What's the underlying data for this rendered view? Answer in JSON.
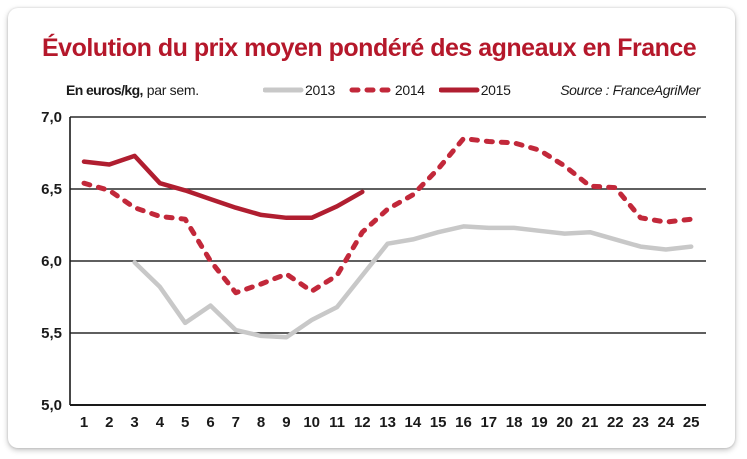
{
  "title": "Évolution du prix moyen pondéré des agneaux en France",
  "unit_label_bold": "En euros/kg,",
  "unit_label_rest": "par sem.",
  "source": "Source : FranceAgriMer",
  "colors": {
    "title": "#b5182b",
    "s2013": "#c8c8c8",
    "s2014": "#c2283a",
    "s2015": "#b01e30",
    "grid": "#2a2a2a"
  },
  "chart_data": {
    "type": "line",
    "title": "Évolution du prix moyen pondéré des agneaux en France",
    "xlabel": "",
    "ylabel": "En euros/kg, par sem.",
    "x": [
      1,
      2,
      3,
      4,
      5,
      6,
      7,
      8,
      9,
      10,
      11,
      12,
      13,
      14,
      15,
      16,
      17,
      18,
      19,
      20,
      21,
      22,
      23,
      24,
      25
    ],
    "x_tick_labels": [
      "1",
      "2",
      "3",
      "4",
      "5",
      "6",
      "7",
      "8",
      "9",
      "10",
      "11",
      "12",
      "13",
      "14",
      "15",
      "16",
      "17",
      "18",
      "19",
      "20",
      "21",
      "22",
      "23",
      "24",
      "25"
    ],
    "ylim": [
      5.0,
      7.0
    ],
    "y_ticks": [
      5.0,
      5.5,
      6.0,
      6.5,
      7.0
    ],
    "y_tick_labels": [
      "5,0",
      "5,5",
      "6,0",
      "6,5",
      "7,0"
    ],
    "grid": "horizontal",
    "legend_position": "top",
    "series": [
      {
        "name": "2013",
        "style": "solid-light",
        "x": [
          3,
          4,
          5,
          6,
          7,
          8,
          9,
          10,
          11,
          12,
          13,
          14,
          15,
          16,
          17,
          18,
          19,
          20,
          21,
          22,
          23,
          24,
          25
        ],
        "values": [
          5.99,
          5.82,
          5.57,
          5.69,
          5.52,
          5.48,
          5.47,
          5.59,
          5.68,
          5.9,
          6.12,
          6.15,
          6.2,
          6.24,
          6.23,
          6.23,
          6.21,
          6.19,
          6.2,
          6.15,
          6.1,
          6.08,
          6.1
        ]
      },
      {
        "name": "2014",
        "style": "dashed",
        "x": [
          1,
          2,
          3,
          4,
          5,
          6,
          7,
          8,
          9,
          10,
          11,
          12,
          13,
          14,
          15,
          16,
          17,
          18,
          19,
          20,
          21,
          22,
          23,
          24,
          25
        ],
        "values": [
          6.54,
          6.49,
          6.37,
          6.31,
          6.29,
          6.0,
          5.78,
          5.84,
          5.91,
          5.79,
          5.9,
          6.2,
          6.36,
          6.46,
          6.64,
          6.85,
          6.83,
          6.82,
          6.77,
          6.66,
          6.52,
          6.51,
          6.3,
          6.27,
          6.29
        ]
      },
      {
        "name": "2015",
        "style": "solid-bold",
        "x": [
          1,
          2,
          3,
          4,
          5,
          6,
          7,
          8,
          9,
          10,
          11,
          12
        ],
        "values": [
          6.69,
          6.67,
          6.73,
          6.54,
          6.49,
          6.43,
          6.37,
          6.32,
          6.3,
          6.3,
          6.38,
          6.48
        ]
      }
    ]
  }
}
